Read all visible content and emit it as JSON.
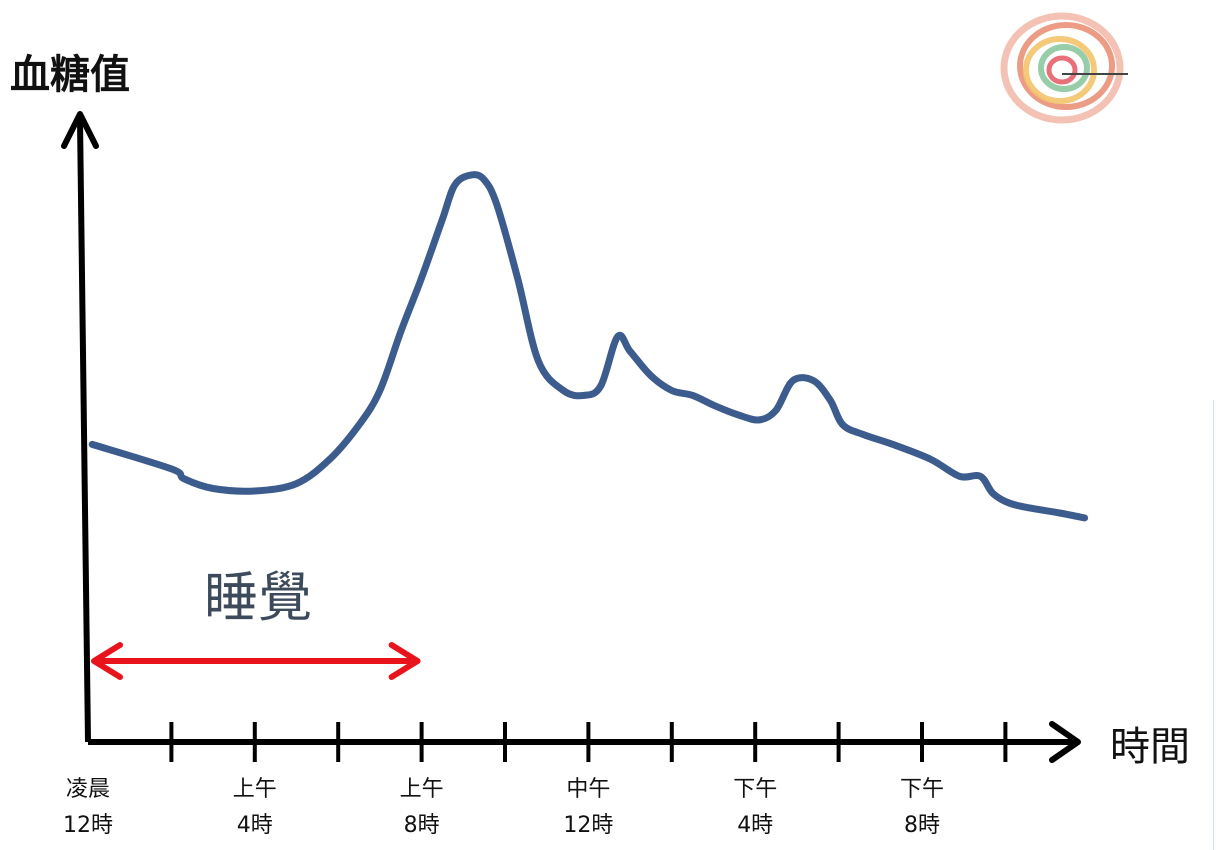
{
  "chart_data": {
    "type": "line",
    "ylabel": "血糖值",
    "xlabel": "時間",
    "xlim": [
      0,
      24
    ],
    "ylim": [
      0,
      100
    ],
    "x_ticks": [
      0,
      2,
      4,
      6,
      8,
      10,
      12,
      14,
      16,
      18,
      20,
      22
    ],
    "tick_labels": [
      {
        "x": 0,
        "lines": [
          "凌晨",
          "12時"
        ]
      },
      {
        "x": 4,
        "lines": [
          "上午",
          "4時"
        ]
      },
      {
        "x": 8,
        "lines": [
          "上午",
          "8時"
        ]
      },
      {
        "x": 12,
        "lines": [
          "中午",
          "12時"
        ]
      },
      {
        "x": 16,
        "lines": [
          "下午",
          "4時"
        ]
      },
      {
        "x": 20,
        "lines": [
          "下午",
          "8時"
        ]
      }
    ],
    "annotation": {
      "label": "睡覺",
      "x_start": 0,
      "x_end": 8,
      "color": "#e8131b"
    },
    "series": [
      {
        "color": "#3d5c8e",
        "x": [
          0.1,
          2.0,
          2.3,
          3.0,
          4.0,
          5.0,
          5.8,
          6.5,
          7.0,
          7.5,
          8.0,
          8.5,
          8.8,
          9.2,
          9.5,
          9.8,
          10.3,
          10.8,
          11.4,
          11.9,
          12.3,
          12.7,
          13.0,
          13.5,
          14.0,
          14.5,
          15.0,
          15.6,
          16.1,
          16.5,
          16.9,
          17.4,
          17.8,
          18.1,
          18.6,
          19.3,
          20.2,
          20.9,
          21.4,
          21.7,
          22.1,
          22.6,
          23.3,
          23.9
        ],
        "y": [
          44,
          39,
          37,
          35,
          34.5,
          36,
          41,
          48,
          55,
          67,
          78,
          90,
          97,
          99,
          98,
          93,
          78,
          61,
          55,
          54,
          56,
          66,
          63,
          58,
          55,
          54,
          52,
          50,
          49,
          51,
          57,
          57,
          53,
          48,
          46,
          44,
          41,
          37.5,
          37.5,
          34,
          32,
          31,
          30,
          29
        ]
      }
    ]
  }
}
